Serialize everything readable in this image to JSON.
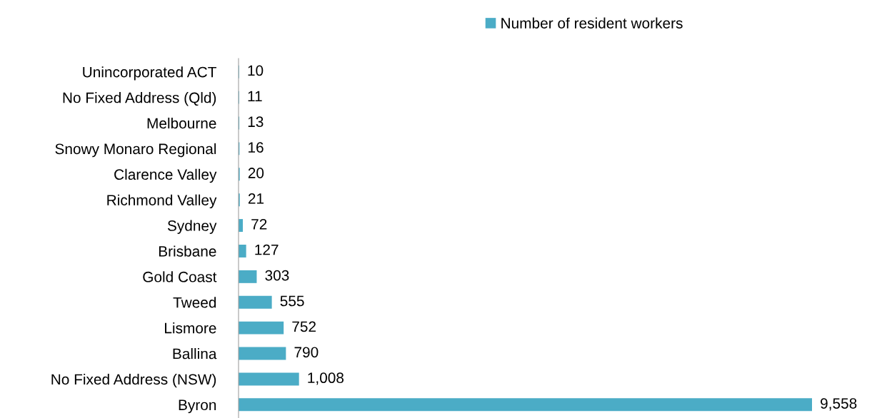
{
  "chart_data": {
    "type": "bar",
    "orientation": "horizontal",
    "categories": [
      "Unincorporated ACT",
      "No Fixed Address (Qld)",
      "Melbourne",
      "Snowy Monaro Regional",
      "Clarence Valley",
      "Richmond Valley",
      "Sydney",
      "Brisbane",
      "Gold Coast",
      "Tweed",
      "Lismore",
      "Ballina",
      "No Fixed Address (NSW)",
      "Byron"
    ],
    "series": [
      {
        "name": "Number of resident workers",
        "color": "#4bacc6",
        "values": [
          10,
          11,
          13,
          16,
          20,
          21,
          72,
          127,
          303,
          555,
          752,
          790,
          1008,
          9558
        ],
        "value_labels": [
          "10",
          "11",
          "13",
          "16",
          "20",
          "21",
          "72",
          "127",
          "303",
          "555",
          "752",
          "790",
          "1,008",
          "9,558"
        ]
      }
    ],
    "legend": "top",
    "grid": false,
    "tick_labels": "y"
  }
}
